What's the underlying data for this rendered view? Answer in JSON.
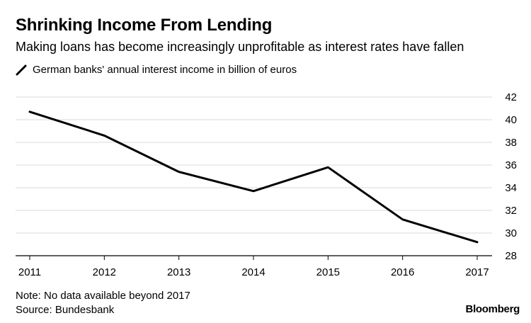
{
  "header": {
    "title": "Shrinking Income From Lending",
    "subtitle": "Making loans has become increasingly unprofitable as interest rates have fallen"
  },
  "footer": {
    "note": "Note: No data available beyond 2017",
    "source": "Source: Bundesbank",
    "brand": "Bloomberg"
  },
  "colors": {
    "line": "#000000",
    "grid": "#d9d9d9",
    "axis": "#000000"
  },
  "chart_data": {
    "type": "line",
    "x": [
      "2011",
      "2012",
      "2013",
      "2014",
      "2015",
      "2016",
      "2017"
    ],
    "series": [
      {
        "name": "German banks' annual interest income in billion of euros",
        "values": [
          40.7,
          38.6,
          35.4,
          33.7,
          35.8,
          31.2,
          29.2
        ]
      }
    ],
    "ylim": [
      28,
      42
    ],
    "yticks": [
      28,
      30,
      32,
      34,
      36,
      38,
      40,
      42
    ],
    "y_axis_side": "right",
    "grid": true,
    "legend": "top-left"
  }
}
